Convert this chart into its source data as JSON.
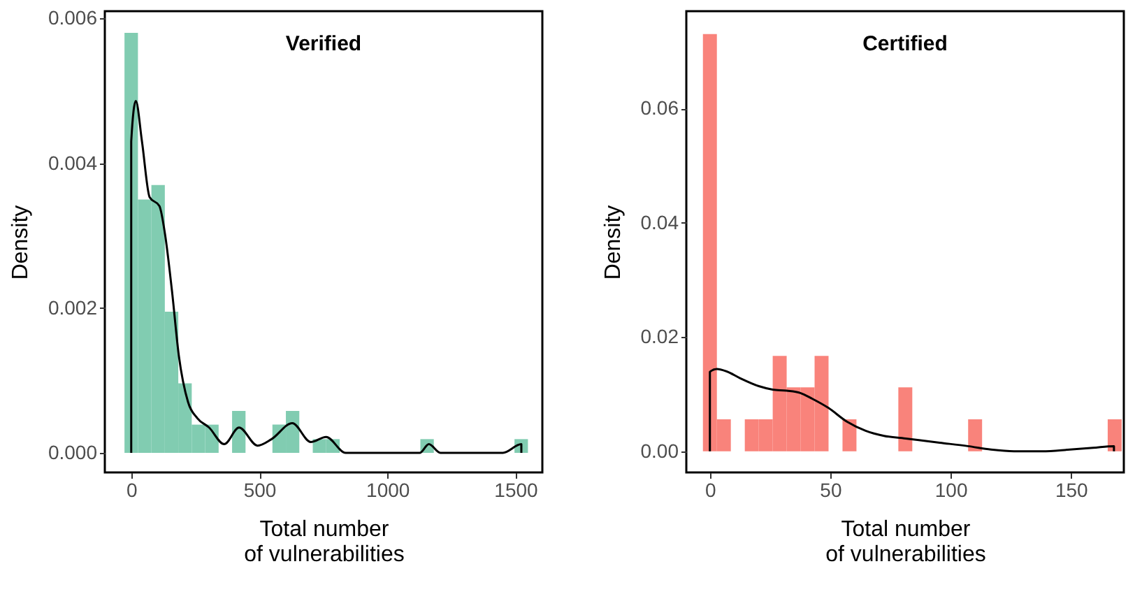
{
  "chart_data": [
    {
      "type": "histogram",
      "title": "Verified",
      "xlabel": "Total number\nof vulnerabilities",
      "ylabel": "Density",
      "bins": [
        -26.25,
        26.25,
        78.75,
        131.25,
        183.75,
        236.25,
        288.75,
        341.25,
        393.75,
        446.25,
        498.75,
        551.25,
        603.75,
        656.25,
        708.75,
        761.25,
        813.75,
        866.25,
        918.75,
        971.25,
        1023.75,
        1076.25,
        1128.75,
        1181.25,
        1233.75,
        1286.25,
        1338.75,
        1391.25,
        1443.75,
        1496.25,
        1548.75
      ],
      "values": [
        0.0058,
        0.0035,
        0.0037,
        0.00195,
        0.00096,
        0.00039,
        0.00039,
        0,
        0.00058,
        0,
        0,
        0.00039,
        0.00058,
        0,
        0.00019,
        0.00019,
        0,
        0,
        0,
        0,
        0,
        0,
        0.00019,
        0,
        0,
        0,
        0,
        0,
        0,
        0.00019
      ],
      "color": "#73c6a8",
      "series": [
        {
          "type": "line",
          "color": "#000000",
          "x": [
            0,
            0,
            18,
            42,
            72,
            110,
            132,
            159,
            186,
            222,
            258,
            304,
            363,
            421,
            493,
            548,
            629,
            701,
            761,
            837,
            1126,
            1162,
            1207,
            1451,
            1523,
            1523
          ],
          "values": [
            0,
            0.0043,
            0.00486,
            0.0043,
            0.00353,
            0.00341,
            0.00302,
            0.00224,
            0.00134,
            0.0007,
            0.00048,
            0.00035,
            0.00012,
            0.00035,
            0.0001,
            0.00019,
            0.00041,
            0.00015,
            0.00022,
            0,
            0,
            0.00012,
            0,
            0,
            0.00012,
            0
          ]
        }
      ],
      "xlim": [
        -103,
        1605
      ],
      "ylim": [
        -0.00027,
        0.0061
      ],
      "xticks": [
        0,
        500,
        1000,
        1500
      ],
      "yticks": [
        {
          "value": 0,
          "label": "0.000"
        },
        {
          "value": 0.002,
          "label": "0.002"
        },
        {
          "value": 0.004,
          "label": "0.004"
        },
        {
          "value": 0.006,
          "label": "0.006"
        }
      ],
      "grid": false
    },
    {
      "type": "histogram",
      "title": "Certified",
      "xlabel": "Total number\nof vulnerabilities",
      "ylabel": "Density",
      "bins": [
        -2.9,
        2.9,
        8.7,
        14.5,
        20.3,
        26.1,
        31.9,
        37.7,
        43.5,
        49.3,
        55.1,
        60.9,
        66.7,
        72.5,
        78.3,
        84.1,
        89.9,
        95.7,
        101.5,
        107.3,
        113.1,
        118.9,
        124.7,
        130.5,
        136.3,
        142.1,
        147.9,
        153.7,
        159.5,
        165.3,
        171.1
      ],
      "values": [
        0.073,
        0.0056,
        0,
        0.0056,
        0.0056,
        0.0167,
        0.0112,
        0.0112,
        0.0167,
        0,
        0.0056,
        0,
        0,
        0,
        0.0112,
        0,
        0,
        0,
        0,
        0.0056,
        0,
        0,
        0,
        0,
        0,
        0,
        0,
        0,
        0,
        0.0056
      ],
      "color": "#f8766d",
      "series": [
        {
          "type": "line",
          "color": "#000000",
          "x": [
            0,
            0,
            2.9,
            6.8,
            12.5,
            20.3,
            26.1,
            31.9,
            37.6,
            42.5,
            49.2,
            56.9,
            64.7,
            72.4,
            82,
            95.5,
            107.2,
            116.8,
            126.4,
            138,
            149.6,
            159.2,
            167.9,
            167.9
          ],
          "values": [
            0,
            0.0139,
            0.0144,
            0.014,
            0.0128,
            0.0114,
            0.0108,
            0.0106,
            0.0102,
            0.0092,
            0.0076,
            0.0052,
            0.0036,
            0.0027,
            0.0022,
            0.0015,
            0.0009,
            0.0003,
            0,
            0,
            0.0003,
            0.0006,
            0.0009,
            0
          ]
        }
      ],
      "xlim": [
        -9.8,
        172
      ],
      "ylim": [
        -0.0037,
        0.077
      ],
      "xticks": [
        0,
        50,
        100,
        150
      ],
      "yticks": [
        {
          "value": 0,
          "label": "0.00"
        },
        {
          "value": 0.02,
          "label": "0.02"
        },
        {
          "value": 0.04,
          "label": "0.04"
        },
        {
          "value": 0.06,
          "label": "0.06"
        }
      ],
      "grid": false
    }
  ]
}
